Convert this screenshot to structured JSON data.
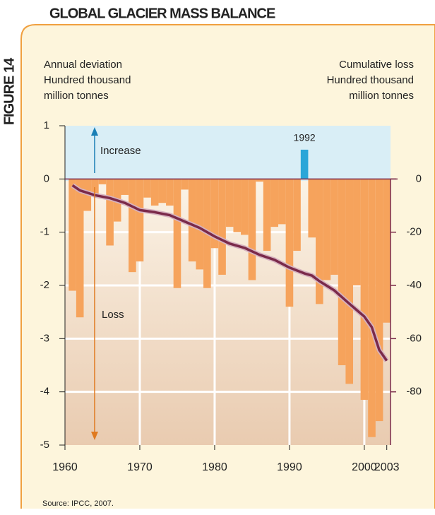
{
  "chart_data": {
    "type": "bar",
    "title": "GLOBAL GLACIER MASS BALANCE",
    "figure_label": "FIGURE 14",
    "ylabel": [
      "Annual deviation",
      "Hundred thousand",
      "million tonnes"
    ],
    "y2label": [
      "Cumulative loss",
      "Hundred thousand",
      "million tonnes"
    ],
    "source": "Source: IPCC, 2007.",
    "annotations": {
      "increase": "Increase",
      "loss": "Loss",
      "peak": "1992"
    },
    "x": [
      1961,
      1962,
      1963,
      1964,
      1965,
      1966,
      1967,
      1968,
      1969,
      1970,
      1971,
      1972,
      1973,
      1974,
      1975,
      1976,
      1977,
      1978,
      1979,
      1980,
      1981,
      1982,
      1983,
      1984,
      1985,
      1986,
      1987,
      1988,
      1989,
      1990,
      1991,
      1992,
      1993,
      1994,
      1995,
      1996,
      1997,
      1998,
      1999,
      2000,
      2001,
      2002,
      2003
    ],
    "series": [
      {
        "name": "Annual deviation",
        "color": "#f6a35c",
        "positive_color": "#2aa6d8",
        "values": [
          -2.1,
          -2.6,
          -0.6,
          -0.3,
          -0.1,
          -1.25,
          -0.8,
          -0.3,
          -1.75,
          -1.55,
          -0.35,
          -0.5,
          -0.45,
          -0.5,
          -2.05,
          -0.2,
          -1.55,
          -1.7,
          -2.05,
          -1.3,
          -1.8,
          -0.9,
          -1.0,
          -1.05,
          -1.9,
          -0.05,
          -1.35,
          -0.9,
          -0.85,
          -2.4,
          -1.35,
          0.55,
          -1.1,
          -2.35,
          -1.9,
          -1.8,
          -3.5,
          -3.85,
          -2.0,
          -4.15,
          -4.85,
          -4.55,
          -2.7
        ]
      },
      {
        "name": "Cumulative loss",
        "color": "#7a2a4a",
        "axis": "y2",
        "x": [
          1961,
          1962,
          1964,
          1966,
          1968,
          1970,
          1972,
          1974,
          1976,
          1978,
          1980,
          1982,
          1984,
          1986,
          1988,
          1990,
          1992,
          1993,
          1994,
          1996,
          1998,
          2000,
          2001,
          2002,
          2003
        ],
        "values": [
          -2.4,
          -4.3,
          -6.1,
          -7.2,
          -9,
          -11.7,
          -12.5,
          -13.6,
          -16,
          -18.4,
          -21.6,
          -24.3,
          -25.9,
          -28.5,
          -30.4,
          -33.3,
          -35.5,
          -36.3,
          -38.4,
          -41.9,
          -46.9,
          -51.7,
          -55.7,
          -64.3,
          -68.3
        ]
      }
    ],
    "xlim": [
      1960,
      2003.5
    ],
    "xticks": [
      1960,
      1970,
      1980,
      1990,
      2000,
      2003
    ],
    "ylim": [
      -5,
      1
    ],
    "yticks": [
      1,
      0,
      -1,
      -2,
      -3,
      -4,
      -5
    ],
    "y2lim": [
      -100,
      20
    ],
    "y2ticks": [
      0,
      -20,
      -40,
      -60,
      -80
    ],
    "grid": true
  }
}
